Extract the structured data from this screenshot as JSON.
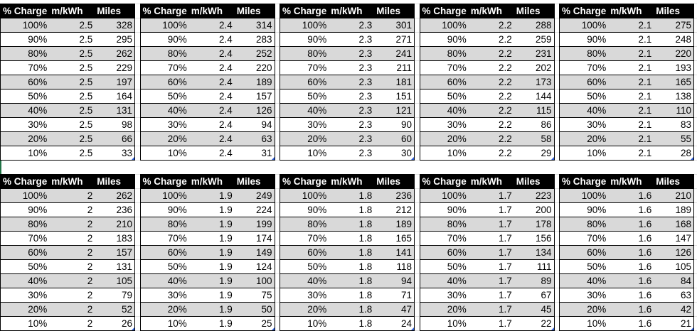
{
  "headers": [
    "% Charge",
    "m/kWh",
    "Miles"
  ],
  "charge_levels": [
    "100%",
    "90%",
    "80%",
    "70%",
    "60%",
    "50%",
    "40%",
    "30%",
    "20%",
    "10%"
  ],
  "tables": [
    {
      "m_kwh": "2.5",
      "miles": [
        "328",
        "295",
        "262",
        "229",
        "197",
        "164",
        "131",
        "98",
        "66",
        "33"
      ]
    },
    {
      "m_kwh": "2.4",
      "miles": [
        "314",
        "283",
        "252",
        "220",
        "189",
        "157",
        "126",
        "94",
        "63",
        "31"
      ]
    },
    {
      "m_kwh": "2.3",
      "miles": [
        "301",
        "271",
        "241",
        "211",
        "181",
        "151",
        "121",
        "90",
        "60",
        "30"
      ]
    },
    {
      "m_kwh": "2.2",
      "miles": [
        "288",
        "259",
        "231",
        "202",
        "173",
        "144",
        "115",
        "86",
        "58",
        "29"
      ]
    },
    {
      "m_kwh": "2.1",
      "miles": [
        "275",
        "248",
        "220",
        "193",
        "165",
        "138",
        "110",
        "83",
        "55",
        "28"
      ]
    },
    {
      "m_kwh": "2",
      "miles": [
        "262",
        "236",
        "210",
        "183",
        "157",
        "131",
        "105",
        "79",
        "52",
        "26"
      ]
    },
    {
      "m_kwh": "1.9",
      "miles": [
        "249",
        "224",
        "199",
        "174",
        "149",
        "124",
        "100",
        "75",
        "50",
        "25"
      ]
    },
    {
      "m_kwh": "1.8",
      "miles": [
        "236",
        "212",
        "189",
        "165",
        "141",
        "118",
        "94",
        "71",
        "47",
        "24"
      ]
    },
    {
      "m_kwh": "1.7",
      "miles": [
        "223",
        "200",
        "178",
        "156",
        "134",
        "111",
        "89",
        "67",
        "45",
        "22"
      ]
    },
    {
      "m_kwh": "1.6",
      "miles": [
        "210",
        "189",
        "168",
        "147",
        "126",
        "105",
        "84",
        "63",
        "42",
        "21"
      ]
    }
  ],
  "colors": {
    "header_bg": "#000000",
    "band": "#d9d9d9",
    "selection": "#217346"
  }
}
